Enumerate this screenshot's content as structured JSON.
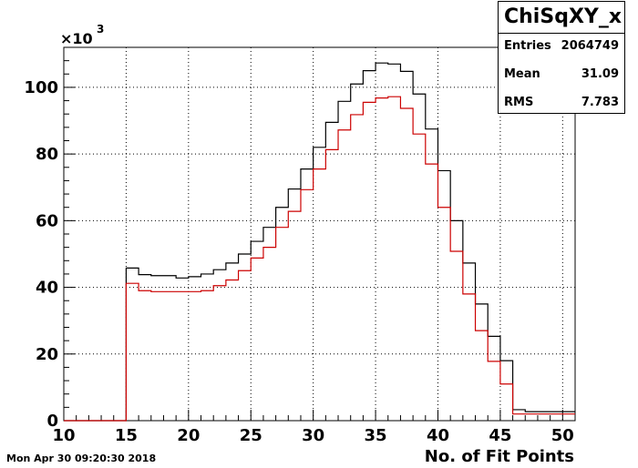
{
  "chart_data": {
    "type": "step-histogram",
    "title": "ChiSqXY_x",
    "xlabel": "No. of Fit Points",
    "ylabel": "",
    "y_multiplier": "×10",
    "y_multiplier_exp": "3",
    "xlim": [
      10,
      51
    ],
    "ylim": [
      0,
      112
    ],
    "x_ticks": [
      10,
      15,
      20,
      25,
      30,
      35,
      40,
      45,
      50
    ],
    "y_ticks": [
      0,
      20,
      40,
      60,
      80,
      100
    ],
    "grid": true,
    "bin_edges": [
      10,
      11,
      12,
      13,
      14,
      15,
      16,
      17,
      18,
      19,
      20,
      21,
      22,
      23,
      24,
      25,
      26,
      27,
      28,
      29,
      30,
      31,
      32,
      33,
      34,
      35,
      36,
      37,
      38,
      39,
      40,
      41,
      42,
      43,
      44,
      45,
      46,
      47,
      48,
      49,
      50,
      51
    ],
    "series": [
      {
        "color": "#000000",
        "values": [
          0,
          0,
          0,
          0,
          0,
          45.8,
          43.8,
          43.5,
          43.5,
          42.8,
          43.2,
          44.0,
          45.3,
          47.3,
          50.0,
          53.8,
          58.0,
          64.0,
          69.5,
          75.5,
          82.0,
          89.5,
          95.8,
          101.0,
          105.0,
          107.3,
          107.0,
          104.8,
          98.0,
          87.5,
          75.0,
          60.0,
          47.3,
          35.0,
          25.3,
          18.0,
          3.3,
          2.7,
          2.7,
          2.7,
          2.7
        ]
      },
      {
        "color": "#cc0000",
        "values": [
          0,
          0,
          0,
          0,
          0,
          41.2,
          39.0,
          38.7,
          38.7,
          38.7,
          38.7,
          39.0,
          40.5,
          42.2,
          45.0,
          48.8,
          52.0,
          58.0,
          62.8,
          69.3,
          75.5,
          81.3,
          87.2,
          91.8,
          95.5,
          96.8,
          97.2,
          93.7,
          86.0,
          77.0,
          64.0,
          50.8,
          38.0,
          27.0,
          17.8,
          11.0,
          2.0,
          2.0,
          2.0,
          2.0,
          2.0
        ]
      }
    ]
  },
  "stats": {
    "title": "ChiSqXY_x",
    "rows": [
      {
        "label": "Entries",
        "value": "2064749"
      },
      {
        "label": "Mean",
        "value": "31.09"
      },
      {
        "label": "RMS",
        "value": "7.783"
      }
    ]
  },
  "datestamp": "Mon Apr 30 09:20:30 2018"
}
